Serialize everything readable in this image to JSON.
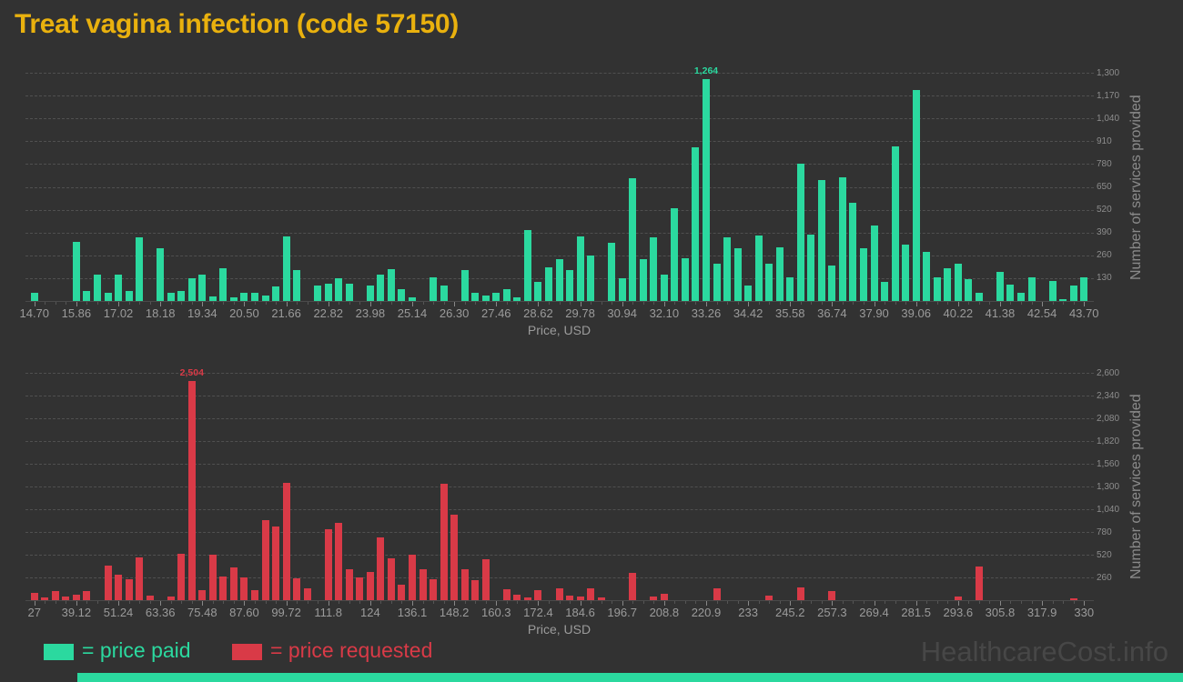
{
  "title": "Treat vagina infection (code 57150)",
  "watermark": "HealthcareCost.info",
  "colors": {
    "background": "#323232",
    "title": "#e9b10e",
    "paid": "#2bd99f",
    "requested": "#d93a47",
    "grid": "#505050",
    "tick_text": "#8d8d8d",
    "axis_text": "#9b9b9b",
    "watermark": "#474747"
  },
  "legend": {
    "items": [
      {
        "label": "= price paid",
        "color": "#2bd99f"
      },
      {
        "label": "= price requested",
        "color": "#d93a47"
      }
    ]
  },
  "footer_strip": {
    "color": "#2bd99f"
  },
  "chart_data": [
    {
      "type": "bar",
      "series": "price paid",
      "color": "#2bd99f",
      "xlabel": "Price, USD",
      "ylabel": "Number of services provided",
      "x_start": 14.7,
      "x_step": 0.29,
      "x_end": 43.7,
      "x_tick_labels": [
        "14.70",
        "15.86",
        "17.02",
        "18.18",
        "19.34",
        "20.50",
        "21.66",
        "22.82",
        "23.98",
        "25.14",
        "26.30",
        "27.46",
        "28.62",
        "29.78",
        "30.94",
        "32.10",
        "33.26",
        "34.42",
        "35.58",
        "36.74",
        "37.90",
        "39.06",
        "40.22",
        "41.38",
        "42.54",
        "43.70"
      ],
      "ylim": [
        0,
        1300
      ],
      "grid": true,
      "y_ticks": [
        130,
        260,
        390,
        520,
        650,
        780,
        910,
        1040,
        1170,
        1300
      ],
      "y_tick_labels": [
        "130",
        "260",
        "390",
        "520",
        "650",
        "780",
        "910",
        "1,040",
        "1,170",
        "1,300"
      ],
      "values": [
        45,
        0,
        0,
        0,
        335,
        55,
        150,
        45,
        150,
        55,
        360,
        0,
        300,
        45,
        55,
        130,
        150,
        25,
        185,
        20,
        45,
        45,
        30,
        85,
        370,
        175,
        0,
        90,
        100,
        130,
        100,
        0,
        90,
        150,
        180,
        65,
        20,
        0,
        135,
        90,
        0,
        175,
        45,
        30,
        45,
        65,
        20,
        405,
        110,
        190,
        240,
        175,
        370,
        260,
        0,
        330,
        130,
        700,
        240,
        360,
        150,
        530,
        245,
        875,
        1264,
        210,
        360,
        300,
        90,
        375,
        210,
        305,
        135,
        780,
        380,
        690,
        200,
        705,
        560,
        300,
        430,
        110,
        880,
        320,
        1200,
        280,
        135,
        185,
        210,
        125,
        45,
        0,
        165,
        95,
        45,
        135,
        0,
        115,
        10,
        90,
        135
      ],
      "peak": {
        "index": 64,
        "label": "1,264",
        "value": 1264
      }
    },
    {
      "type": "bar",
      "series": "price requested",
      "color": "#d93a47",
      "xlabel": "Price, USD",
      "ylabel": "Number of services provided",
      "x_start": 27,
      "x_step": 3.03,
      "x_end": 330,
      "x_tick_labels": [
        "27",
        "39.12",
        "51.24",
        "63.36",
        "75.48",
        "87.60",
        "99.72",
        "111.8",
        "124",
        "136.1",
        "148.2",
        "160.3",
        "172.4",
        "184.6",
        "196.7",
        "208.8",
        "220.9",
        "233",
        "245.2",
        "257.3",
        "269.4",
        "281.5",
        "293.6",
        "305.8",
        "317.9",
        "330"
      ],
      "ylim": [
        0,
        2600
      ],
      "grid": true,
      "y_ticks": [
        260,
        520,
        780,
        1040,
        1300,
        1560,
        1820,
        2080,
        2340,
        2600
      ],
      "y_tick_labels": [
        "260",
        "520",
        "780",
        "1,040",
        "1,300",
        "1,560",
        "1,820",
        "2,080",
        "2,340",
        "2,600"
      ],
      "values": [
        85,
        30,
        100,
        40,
        65,
        100,
        0,
        395,
        295,
        240,
        490,
        50,
        0,
        40,
        535,
        2504,
        110,
        515,
        275,
        375,
        260,
        110,
        915,
        845,
        1345,
        250,
        135,
        0,
        815,
        880,
        355,
        260,
        320,
        720,
        480,
        180,
        515,
        355,
        240,
        1330,
        975,
        355,
        225,
        465,
        0,
        120,
        65,
        30,
        110,
        0,
        135,
        50,
        40,
        135,
        30,
        0,
        0,
        310,
        0,
        40,
        75,
        0,
        0,
        0,
        0,
        135,
        0,
        0,
        0,
        0,
        50,
        0,
        0,
        145,
        0,
        0,
        100,
        0,
        0,
        0,
        0,
        0,
        0,
        0,
        0,
        0,
        0,
        0,
        40,
        0,
        390,
        0,
        0,
        0,
        0,
        0,
        0,
        0,
        0,
        20,
        0
      ],
      "peak": {
        "index": 15,
        "label": "2,504",
        "value": 2504
      }
    }
  ]
}
